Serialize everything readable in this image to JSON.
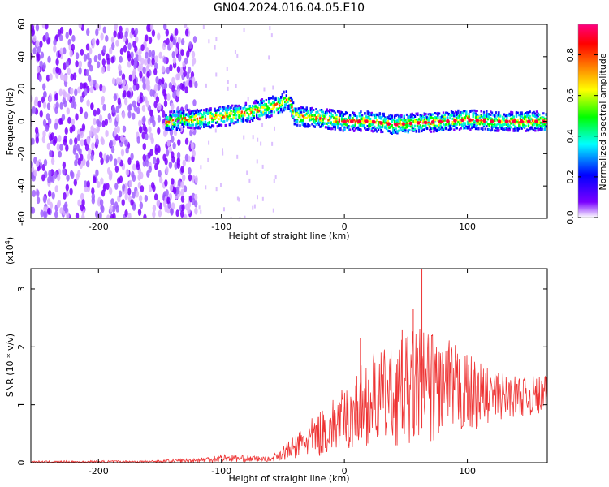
{
  "title": "GN04.2024.016.04.05.E10",
  "chart_data": [
    {
      "type": "heatmap",
      "xlabel": "Height of straight line (km)",
      "ylabel": "Frequency (Hz)",
      "xlim": [
        -255,
        165
      ],
      "ylim": [
        -60,
        60
      ],
      "xticks": [
        -200,
        -100,
        0,
        100
      ],
      "yticks": [
        -60,
        -40,
        -20,
        0,
        20,
        40,
        60
      ],
      "colorbar": {
        "label": "Normalized spectral amplitude",
        "range": [
          0.0,
          0.95
        ],
        "ticks": [
          "0.0",
          "0.2",
          "0.4",
          "0.6",
          "0.8"
        ],
        "colors": [
          "#ffffff",
          "#7a00ff",
          "#0000ff",
          "#00ffff",
          "#00ff00",
          "#ffff00",
          "#ff8000",
          "#ff0000",
          "#ff0080"
        ]
      },
      "ridge": {
        "x": [
          -145,
          -130,
          -110,
          -90,
          -70,
          -55,
          -45,
          -40,
          -20,
          0,
          20,
          40,
          60,
          80,
          100,
          120,
          140,
          165
        ],
        "y": [
          0,
          1,
          2,
          4,
          7,
          10,
          14,
          3,
          2,
          0,
          0,
          -2,
          -1,
          0,
          1,
          0,
          0,
          0
        ]
      },
      "noise_region": {
        "x": [
          -255,
          -130
        ],
        "y": [
          -60,
          60
        ]
      }
    },
    {
      "type": "line",
      "xlabel": "Height of straight line (km)",
      "ylabel": "SNR (10 * v/v)",
      "yscale_label": "(x10",
      "yscale_exp": "4",
      "yscale_close": ")",
      "xlim": [
        -255,
        165
      ],
      "ylim": [
        0,
        3.35
      ],
      "xticks": [
        -200,
        -100,
        0,
        100
      ],
      "yticks": [
        0,
        1,
        2,
        3
      ],
      "color": "#ee3333",
      "envelope": {
        "x": [
          -255,
          -160,
          -120,
          -100,
          -60,
          -40,
          -20,
          0,
          20,
          40,
          60,
          80,
          100,
          120,
          140,
          165
        ],
        "upper": [
          0.03,
          0.04,
          0.08,
          0.15,
          0.1,
          0.5,
          0.9,
          1.3,
          1.9,
          2.0,
          2.4,
          2.2,
          1.9,
          1.6,
          1.5,
          1.5
        ],
        "lower": [
          0.0,
          0.0,
          0.0,
          0.01,
          0.02,
          0.05,
          0.1,
          0.2,
          0.3,
          0.3,
          0.3,
          0.4,
          0.5,
          0.7,
          0.8,
          0.8
        ]
      },
      "peaks": [
        {
          "x": 63,
          "y": 3.35
        },
        {
          "x": 56,
          "y": 2.65
        },
        {
          "x": 13,
          "y": 2.15
        },
        {
          "x": 47,
          "y": 2.3
        }
      ]
    }
  ]
}
